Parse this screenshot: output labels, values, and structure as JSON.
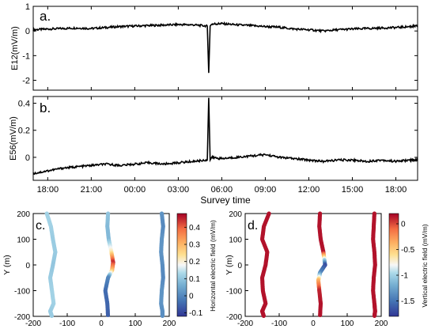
{
  "chart_data": [
    {
      "type": "line",
      "panel_label": "a.",
      "ylabel": "E12(mV/m)",
      "ylim": [
        -2.4,
        1.0
      ],
      "yticks": [
        1,
        0,
        -1,
        -2
      ],
      "xlim": [
        17.0,
        43.5
      ],
      "x": [
        17.0,
        18.0,
        19.0,
        20.0,
        21.0,
        22.0,
        23.0,
        24.0,
        25.0,
        26.0,
        27.0,
        28.0,
        29.0,
        29.1,
        29.2,
        29.3,
        30.0,
        31.0,
        32.0,
        33.0,
        34.0,
        35.0,
        36.0,
        37.0,
        38.0,
        39.0,
        40.0,
        41.0,
        42.0,
        43.0,
        43.5
      ],
      "series": [
        {
          "values": [
            0.05,
            0.08,
            0.1,
            0.12,
            0.1,
            0.14,
            0.18,
            0.2,
            0.22,
            0.24,
            0.26,
            0.25,
            0.2,
            -1.7,
            0.2,
            0.28,
            0.3,
            0.25,
            0.22,
            0.18,
            0.15,
            0.08,
            0.05,
            0.0,
            0.05,
            0.08,
            0.1,
            0.12,
            0.14,
            0.18,
            0.2
          ]
        }
      ]
    },
    {
      "type": "line",
      "panel_label": "b.",
      "xlabel": "Survey time",
      "ylabel": "E56(mV/m)",
      "ylim": [
        -0.17,
        0.45
      ],
      "yticks": [
        0.4,
        0.2,
        0
      ],
      "xlim": [
        17.0,
        43.5
      ],
      "xticks": [
        18,
        21,
        24,
        27,
        30,
        33,
        36,
        39,
        42
      ],
      "xticklabels": [
        "18:00",
        "21:00",
        "00:00",
        "03:00",
        "06:00",
        "09:00",
        "12:00",
        "15:00",
        "18:00"
      ],
      "x": [
        17.0,
        18.0,
        19.0,
        20.0,
        21.0,
        22.0,
        23.0,
        24.0,
        25.0,
        26.0,
        27.0,
        28.0,
        29.0,
        29.1,
        29.2,
        29.3,
        30.0,
        31.0,
        32.0,
        33.0,
        34.0,
        35.0,
        36.0,
        37.0,
        38.0,
        39.0,
        40.0,
        41.0,
        42.0,
        43.0,
        43.5
      ],
      "series": [
        {
          "values": [
            -0.12,
            -0.1,
            -0.08,
            -0.07,
            -0.06,
            -0.05,
            -0.06,
            -0.05,
            -0.04,
            -0.05,
            -0.04,
            -0.03,
            -0.02,
            0.44,
            -0.02,
            0.0,
            -0.01,
            0.0,
            0.01,
            0.02,
            0.0,
            -0.01,
            -0.02,
            -0.03,
            -0.02,
            -0.02,
            -0.03,
            -0.02,
            -0.03,
            -0.02,
            -0.02
          ]
        }
      ]
    },
    {
      "type": "scatter",
      "panel_label": "c.",
      "ylabel": "Y (m)",
      "xlim": [
        -200,
        200
      ],
      "ylim": [
        -200,
        200
      ],
      "xticks": [
        -200,
        -100,
        0,
        100,
        200
      ],
      "yticks": [
        200,
        100,
        0,
        -100,
        -200
      ],
      "colorbar": {
        "label": "Horizontal electric field (mV/m)",
        "range": [
          -0.12,
          0.48
        ],
        "ticks": [
          0.4,
          0.3,
          0.2,
          0.1,
          0,
          -0.1
        ],
        "colormap": "RdYlBu_r"
      },
      "tracks": [
        {
          "x": [
            -160,
            -148,
            -142,
            -135,
            -142,
            -150,
            -145,
            -140,
            -150,
            -145
          ],
          "y": [
            200,
            150,
            100,
            50,
            0,
            -50,
            -100,
            -150,
            -180,
            -200
          ],
          "values": [
            0.12,
            0.12,
            0.11,
            0.11,
            0.1,
            0.11,
            0.12,
            0.12,
            0.11,
            0.11
          ]
        },
        {
          "x": [
            20,
            18,
            22,
            30,
            35,
            32,
            20,
            12,
            18,
            20
          ],
          "y": [
            200,
            150,
            100,
            50,
            10,
            -20,
            -50,
            -100,
            -150,
            -200
          ],
          "values": [
            0.1,
            0.08,
            0.08,
            0.22,
            0.45,
            0.3,
            0.0,
            -0.04,
            -0.05,
            -0.06
          ]
        },
        {
          "x": [
            178,
            182,
            178,
            176,
            180,
            182,
            178,
            176,
            180,
            180
          ],
          "y": [
            200,
            150,
            100,
            50,
            0,
            -50,
            -100,
            -150,
            -180,
            -200
          ],
          "values": [
            0.02,
            0.0,
            0.02,
            0.02,
            0.01,
            0.0,
            0.02,
            0.02,
            0.01,
            0.01
          ]
        }
      ]
    },
    {
      "type": "scatter",
      "panel_label": "d.",
      "ylabel": "Y (m)",
      "xlim": [
        -200,
        200
      ],
      "ylim": [
        -200,
        200
      ],
      "xticks": [
        -200,
        -100,
        0,
        100,
        200
      ],
      "yticks": [
        200,
        100,
        0,
        -100,
        -200
      ],
      "colorbar": {
        "label": "Vertical electric field (mV/m)",
        "range": [
          -1.8,
          0.2
        ],
        "ticks": [
          0,
          -0.5,
          -1,
          -1.5
        ],
        "colormap": "RdYlBu_r"
      },
      "tracks": [
        {
          "x": [
            -130,
            -145,
            -150,
            -135,
            -140,
            -150,
            -148,
            -140,
            -150,
            -145
          ],
          "y": [
            200,
            150,
            100,
            50,
            0,
            -50,
            -100,
            -150,
            -180,
            -200
          ],
          "values": [
            0.15,
            0.15,
            0.15,
            0.15,
            0.15,
            0.15,
            0.15,
            0.15,
            0.15,
            0.15
          ]
        },
        {
          "x": [
            20,
            18,
            22,
            30,
            35,
            20,
            15,
            18,
            22,
            20
          ],
          "y": [
            200,
            150,
            100,
            50,
            0,
            -30,
            -60,
            -100,
            -150,
            -200
          ],
          "values": [
            0.15,
            0.15,
            0.15,
            0.15,
            -1.7,
            -1.4,
            -0.4,
            0.1,
            0.15,
            0.15
          ]
        },
        {
          "x": [
            180,
            178,
            176,
            180,
            182,
            178,
            176,
            180,
            182,
            180
          ],
          "y": [
            200,
            150,
            100,
            50,
            0,
            -50,
            -100,
            -150,
            -180,
            -200
          ],
          "values": [
            0.15,
            0.15,
            0.15,
            0.15,
            0.15,
            0.15,
            0.15,
            0.15,
            0.15,
            0.15
          ]
        }
      ]
    }
  ]
}
